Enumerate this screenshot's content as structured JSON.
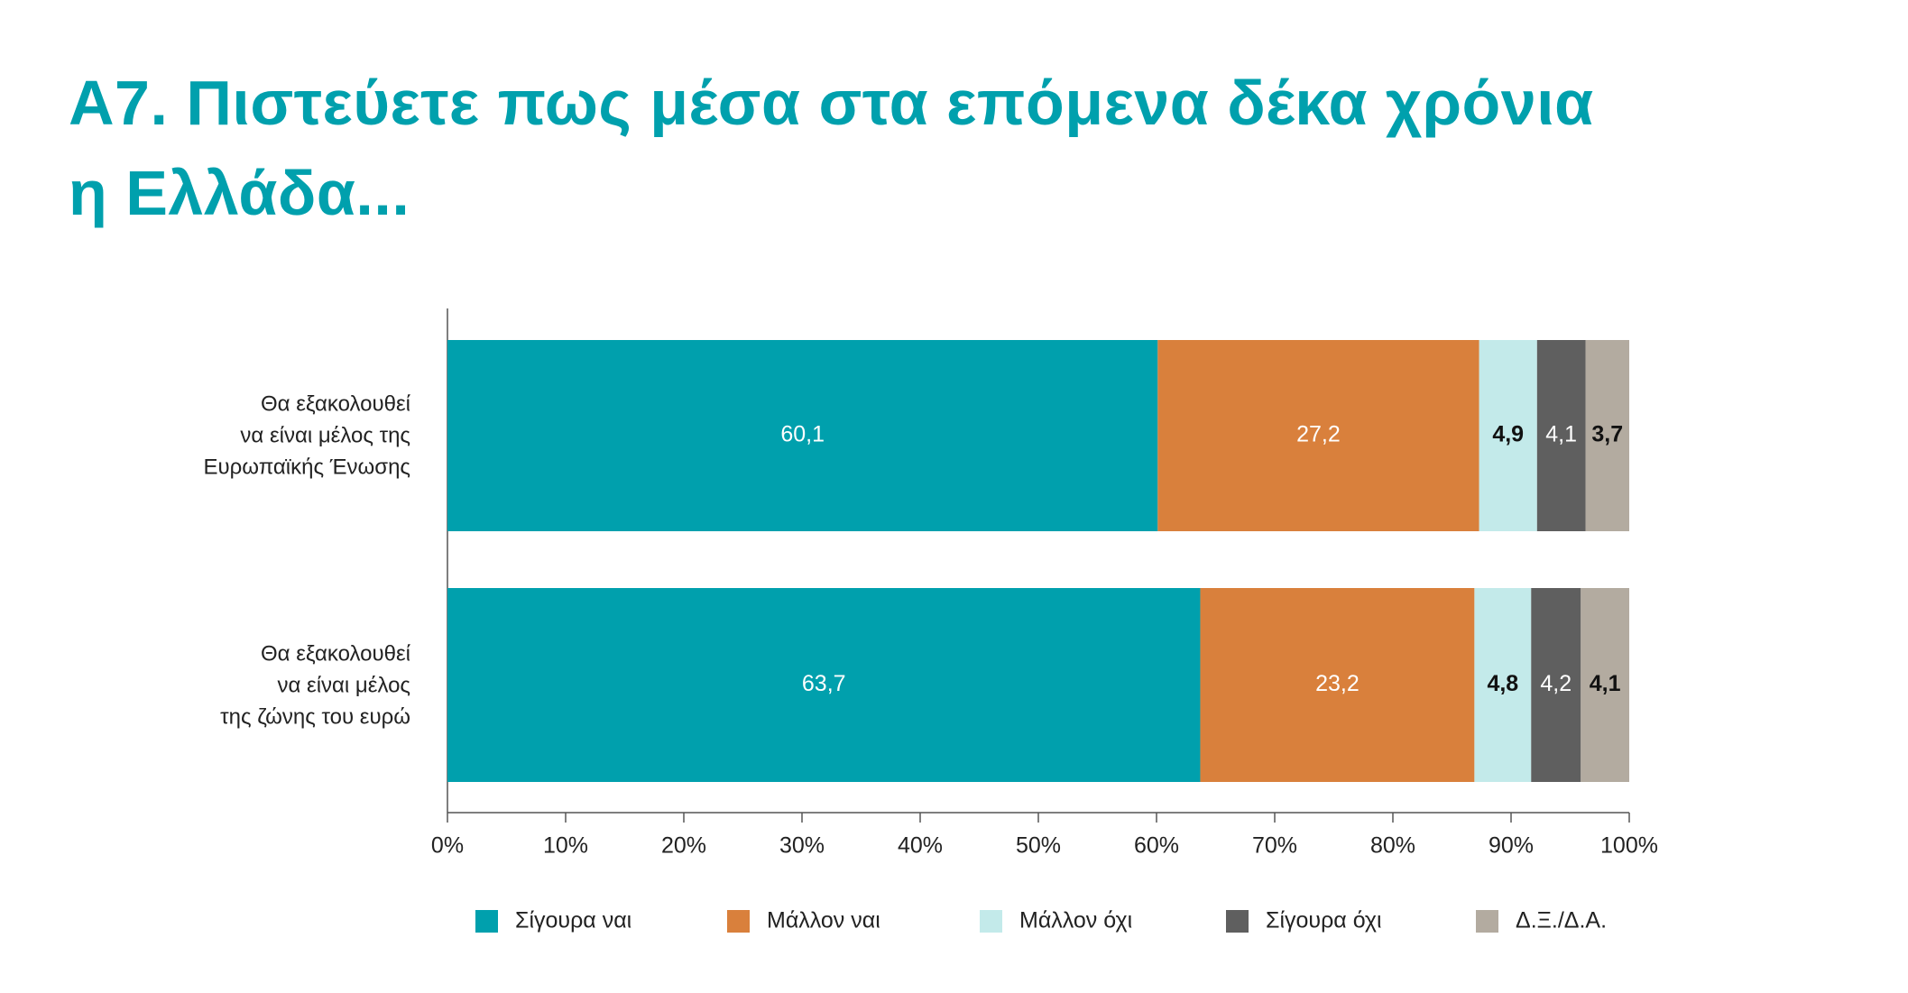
{
  "chart_data": {
    "type": "stacked-bar-horizontal",
    "title": "Α7. Πιστεύετε πως μέσα στα επόμενα δέκα χρόνια\nη Ελλάδα...",
    "categories": [
      "Θα εξακολουθεί\nνα είναι μέλος της\nΕυρωπαϊκής Ένωσης",
      "Θα εξακολουθεί\nνα είναι μέλος\nτης ζώνης του ευρώ"
    ],
    "series": [
      {
        "name": "Σίγουρα ναι",
        "color": "#00a0ad",
        "values": [
          60.1,
          63.7
        ],
        "value_labels": [
          "60,1",
          "63,7"
        ]
      },
      {
        "name": "Μάλλον ναι",
        "color": "#d9803c",
        "values": [
          27.2,
          23.2
        ],
        "value_labels": [
          "27,2",
          "23,2"
        ]
      },
      {
        "name": "Μάλλον όχι",
        "color": "#c3eaea",
        "values": [
          4.9,
          4.8
        ],
        "value_labels": [
          "4,9",
          "4,8"
        ]
      },
      {
        "name": "Σίγουρα όχι",
        "color": "#5f5f5f",
        "values": [
          4.1,
          4.2
        ],
        "value_labels": [
          "4,1",
          "4,2"
        ]
      },
      {
        "name": "Δ.Ξ./Δ.Α.",
        "color": "#b3aba0",
        "values": [
          3.7,
          4.1
        ],
        "value_labels": [
          "3,7",
          "4,1"
        ]
      }
    ],
    "xlim": [
      0,
      100
    ],
    "xticks": [
      {
        "value": 0,
        "label": "0%"
      },
      {
        "value": 10,
        "label": "10%"
      },
      {
        "value": 20,
        "label": "20%"
      },
      {
        "value": 30,
        "label": "30%"
      },
      {
        "value": 40,
        "label": "40%"
      },
      {
        "value": 50,
        "label": "50%"
      },
      {
        "value": 60,
        "label": "60%"
      },
      {
        "value": 70,
        "label": "70%"
      },
      {
        "value": 80,
        "label": "80%"
      },
      {
        "value": 90,
        "label": "90%"
      },
      {
        "value": 100,
        "label": "100%"
      }
    ],
    "grid": false,
    "legend": "bottom"
  }
}
